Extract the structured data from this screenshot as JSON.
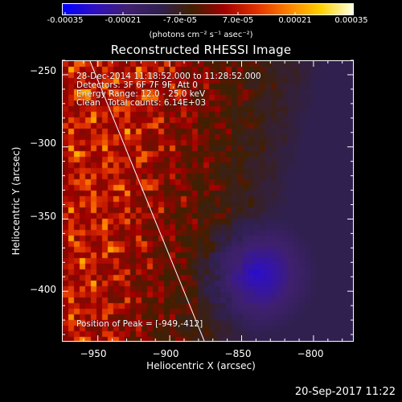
{
  "colorbar": {
    "ticks": [
      "-0.00035",
      "-0.00021",
      "-7.0e-05",
      "7.0e-05",
      "0.00021",
      "0.00035"
    ],
    "unit": "(photons cm⁻² s⁻¹ asec⁻²)",
    "colors": [
      "#0000ff",
      "#3010c0",
      "#402070",
      "#302050",
      "#402000",
      "#a00000",
      "#e03000",
      "#ff8000",
      "#ffd000",
      "#ffffe0"
    ]
  },
  "image": {
    "title": "Reconstructed RHESSI Image",
    "time_range": "28-Dec-2014 11:18:52.000 to 11:28:52.000",
    "detectors": "Detectors: 3F 6F 7F 9F, Att 0",
    "energy_range": "Energy Range: 12.0 - 25.0 keV",
    "algorithm": "Clean",
    "total_counts": "Total counts: 6.14E+03",
    "peak_position": "Position of Peak = [-949,-412]"
  },
  "axes": {
    "xlabel": "Heliocentric X (arcsec)",
    "ylabel": "Heliocentric Y (arcsec)",
    "xticks": [
      {
        "value": -950,
        "label": "−950"
      },
      {
        "value": -900,
        "label": "−900"
      },
      {
        "value": -850,
        "label": "−850"
      },
      {
        "value": -800,
        "label": "−800"
      }
    ],
    "yticks": [
      {
        "value": -250,
        "label": "−250"
      },
      {
        "value": -300,
        "label": "−300"
      },
      {
        "value": -350,
        "label": "−350"
      },
      {
        "value": -400,
        "label": "−400"
      }
    ],
    "xlim": [
      -975,
      -772
    ],
    "ylim": [
      -435,
      -240
    ]
  },
  "footer": {
    "date": "20-Sep-2017 11:22"
  }
}
